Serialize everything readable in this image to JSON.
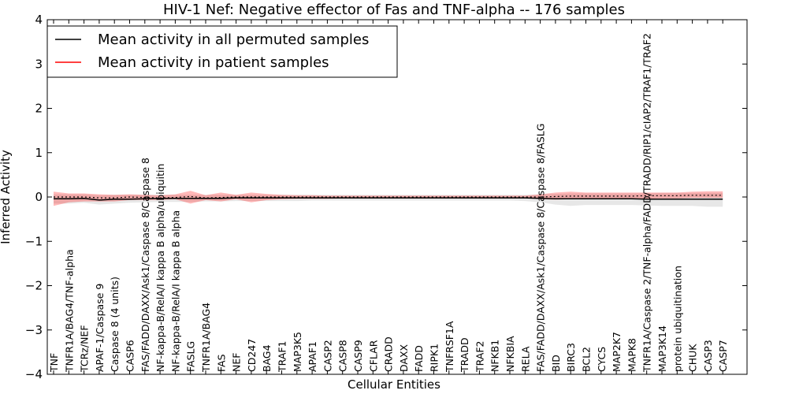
{
  "chart_data": {
    "type": "line",
    "title": "HIV-1 Nef: Negative effector of Fas and TNF-alpha -- 176 samples",
    "xlabel": "Cellular Entities",
    "ylabel": "Inferred Activity",
    "ylim": [
      -4,
      4
    ],
    "yticks": [
      -4,
      -3,
      -2,
      -1,
      0,
      1,
      2,
      3,
      4
    ],
    "ytick_labels": [
      "−4",
      "−3",
      "−2",
      "−1",
      "0",
      "1",
      "2",
      "3",
      "4"
    ],
    "legend_position": "top-left",
    "categories": [
      "TNF",
      "TNFR1A/BAG4/TNF-alpha",
      "TCRz/NEF",
      "APAF-1/Caspase 9",
      "Caspase 8 (4 units)",
      "CASP6",
      "FAS/FADD/DAXX/Ask1/Caspase 8/Caspase 8",
      "NF-kappa-B/RelA/I kappa B alpha/ubiquitin",
      "NF-kappa-B/RelA/I kappa B alpha",
      "FASLG",
      "TNFR1A/BAG4",
      "FAS",
      "NEF",
      "CD247",
      "BAG4",
      "TRAF1",
      "MAP3K5",
      "APAF1",
      "CASP2",
      "CASP8",
      "CASP9",
      "CFLAR",
      "CRADD",
      "DAXX",
      "FADD",
      "RIPK1",
      "TNFRSF1A",
      "TRADD",
      "TRAF2",
      "NFKB1",
      "NFKBIA",
      "RELA",
      "FAS/FADD/DAXX/Ask1/Caspase 8/Caspase 8/FASLG",
      "BID",
      "BIRC3",
      "BCL2",
      "CYCS",
      "MAP2K7",
      "MAPK8",
      "TNFR1A/Caspase 2/TNF-alpha/FADD/TRADD/RIP1/cIAP2/TRAF1/TRAF2",
      "MAP3K14",
      "protein ubiquitination",
      "CHUK",
      "CASP3",
      "CASP7"
    ],
    "series": [
      {
        "name": "Mean activity in all permuted samples",
        "color": "#000000",
        "values": [
          -0.04,
          -0.04,
          -0.03,
          -0.07,
          -0.05,
          -0.05,
          -0.04,
          -0.03,
          -0.03,
          -0.03,
          -0.03,
          -0.03,
          -0.02,
          -0.02,
          -0.02,
          -0.02,
          -0.02,
          -0.02,
          -0.02,
          -0.02,
          -0.02,
          -0.02,
          -0.02,
          -0.02,
          -0.02,
          -0.02,
          -0.02,
          -0.02,
          -0.02,
          -0.02,
          -0.02,
          -0.02,
          -0.03,
          -0.04,
          -0.04,
          -0.04,
          -0.04,
          -0.04,
          -0.04,
          -0.05,
          -0.05,
          -0.05,
          -0.05,
          -0.05,
          -0.05
        ],
        "band_low": [
          -0.15,
          -0.15,
          -0.13,
          -0.17,
          -0.15,
          -0.13,
          -0.12,
          -0.11,
          -0.11,
          -0.11,
          -0.1,
          -0.1,
          -0.09,
          -0.09,
          -0.09,
          -0.09,
          -0.09,
          -0.08,
          -0.08,
          -0.08,
          -0.08,
          -0.08,
          -0.08,
          -0.08,
          -0.08,
          -0.08,
          -0.08,
          -0.08,
          -0.08,
          -0.08,
          -0.08,
          -0.09,
          -0.12,
          -0.17,
          -0.2,
          -0.18,
          -0.18,
          -0.18,
          -0.18,
          -0.19,
          -0.2,
          -0.2,
          -0.2,
          -0.22,
          -0.22
        ],
        "band_high": [
          0.06,
          0.06,
          0.06,
          0.04,
          0.05,
          0.05,
          0.05,
          0.05,
          0.05,
          0.05,
          0.05,
          0.05,
          0.05,
          0.05,
          0.05,
          0.05,
          0.05,
          0.05,
          0.05,
          0.05,
          0.05,
          0.05,
          0.05,
          0.05,
          0.05,
          0.05,
          0.05,
          0.05,
          0.05,
          0.05,
          0.05,
          0.05,
          0.06,
          0.07,
          0.08,
          0.08,
          0.08,
          0.08,
          0.08,
          0.08,
          0.09,
          0.09,
          0.09,
          0.09,
          0.09
        ]
      },
      {
        "name": "Mean activity in patient samples",
        "color": "#ff0000",
        "values": [
          0.0,
          0.0,
          0.0,
          -0.02,
          -0.02,
          0.0,
          -0.01,
          -0.02,
          -0.01,
          0.01,
          -0.02,
          -0.01,
          0.0,
          0.0,
          0.0,
          0.0,
          0.0,
          0.0,
          0.0,
          0.0,
          0.0,
          0.0,
          0.0,
          0.0,
          0.0,
          0.0,
          0.0,
          0.0,
          0.0,
          0.0,
          0.0,
          0.0,
          0.0,
          0.01,
          0.02,
          0.02,
          0.02,
          0.02,
          0.02,
          0.03,
          0.03,
          0.03,
          0.04,
          0.04,
          0.04
        ],
        "band_low": [
          -0.2,
          -0.12,
          -0.1,
          -0.1,
          -0.1,
          -0.07,
          -0.07,
          -0.07,
          -0.05,
          -0.15,
          -0.07,
          -0.1,
          -0.05,
          -0.12,
          -0.07,
          -0.05,
          -0.04,
          -0.04,
          -0.04,
          -0.03,
          -0.03,
          -0.03,
          -0.03,
          -0.03,
          -0.03,
          -0.03,
          -0.03,
          -0.03,
          -0.03,
          -0.03,
          -0.03,
          -0.03,
          -0.05,
          -0.06,
          -0.05,
          -0.05,
          -0.05,
          -0.04,
          -0.04,
          -0.04,
          -0.03,
          -0.03,
          -0.02,
          -0.02,
          -0.02
        ],
        "band_high": [
          0.12,
          0.08,
          0.08,
          0.06,
          0.05,
          0.06,
          0.05,
          0.04,
          0.06,
          0.14,
          0.04,
          0.1,
          0.05,
          0.1,
          0.07,
          0.05,
          0.04,
          0.04,
          0.03,
          0.03,
          0.03,
          0.03,
          0.03,
          0.03,
          0.03,
          0.03,
          0.03,
          0.03,
          0.03,
          0.03,
          0.03,
          0.03,
          0.06,
          0.1,
          0.12,
          0.1,
          0.1,
          0.1,
          0.1,
          0.1,
          0.1,
          0.1,
          0.12,
          0.13,
          0.13
        ]
      }
    ]
  }
}
